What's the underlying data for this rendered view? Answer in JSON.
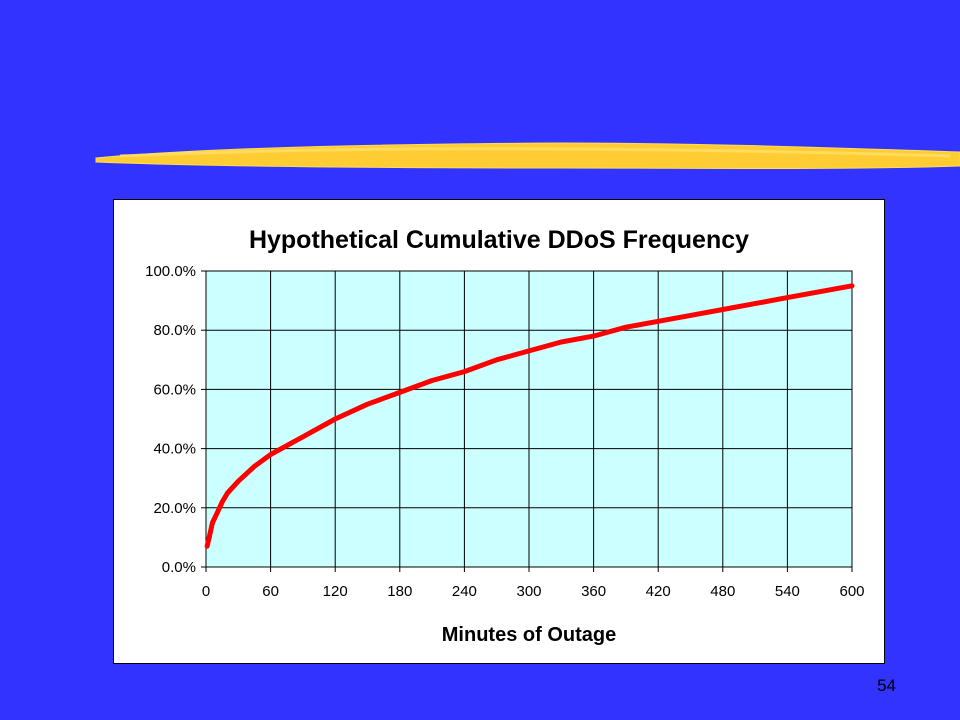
{
  "slide": {
    "page_number": "54",
    "colors": {
      "background": "#3333ff",
      "brush_stroke": "#ffcc33",
      "plot_area": "#ccffff",
      "line": "#ff0000"
    }
  },
  "chart_data": {
    "type": "line",
    "title": "Hypothetical Cumulative DDoS Frequency",
    "xlabel": "Minutes of Outage",
    "ylabel": "",
    "xlim": [
      0,
      600
    ],
    "ylim": [
      0,
      100
    ],
    "grid": true,
    "legend": "none",
    "x_ticks": [
      "0",
      "60",
      "120",
      "180",
      "240",
      "300",
      "360",
      "420",
      "480",
      "540",
      "600"
    ],
    "y_ticks": [
      "0.0%",
      "20.0%",
      "40.0%",
      "60.0%",
      "80.0%",
      "100.0%"
    ],
    "series": [
      {
        "color": "#ff0000",
        "x": [
          1,
          3,
          6,
          10,
          15,
          20,
          30,
          45,
          60,
          90,
          120,
          150,
          180,
          210,
          240,
          270,
          300,
          330,
          360,
          390,
          420,
          450,
          480,
          510,
          540,
          570,
          600
        ],
        "y": [
          7,
          10,
          15,
          18,
          22,
          25,
          29,
          34,
          38,
          44,
          50,
          55,
          59,
          63,
          66,
          70,
          73,
          76,
          78,
          81,
          83,
          85,
          87,
          89,
          91,
          93,
          95
        ]
      }
    ]
  }
}
